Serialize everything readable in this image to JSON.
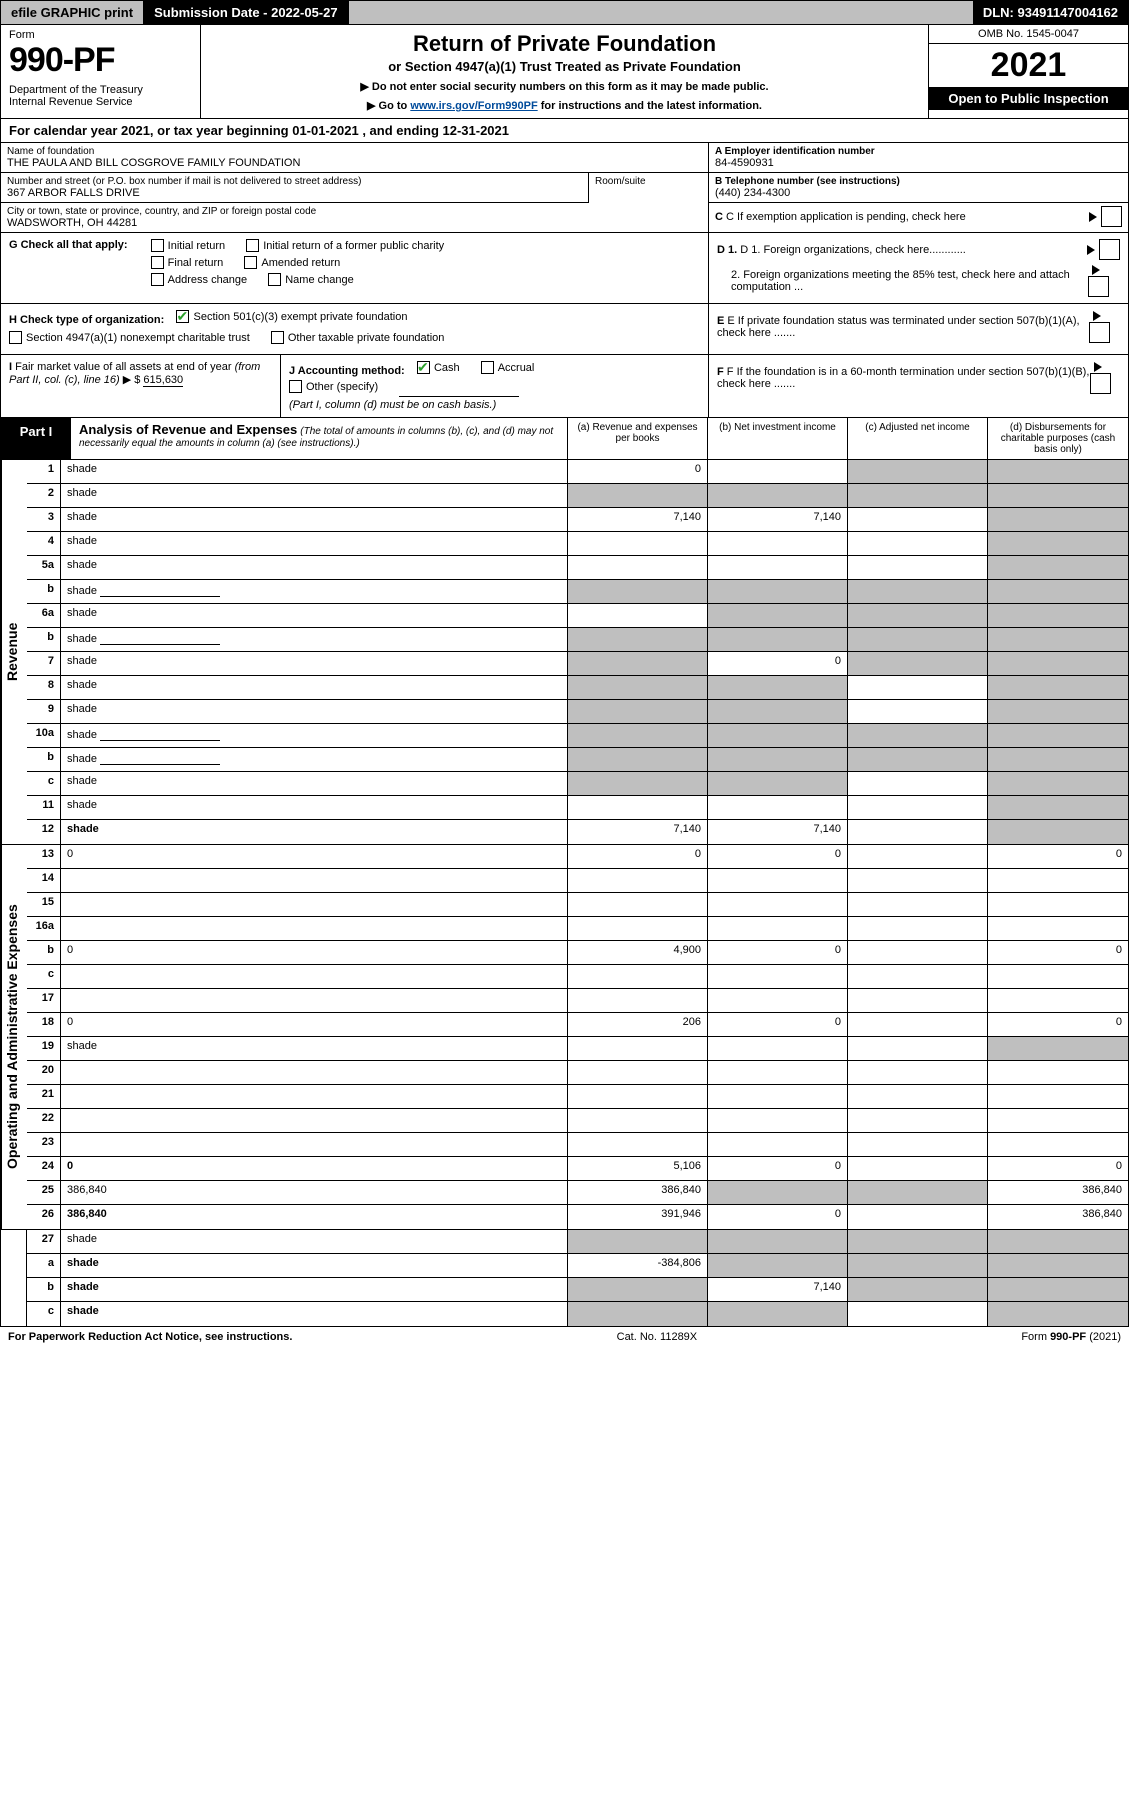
{
  "topbar": {
    "efile": "efile GRAPHIC print",
    "submission": "Submission Date - 2022-05-27",
    "dln": "DLN: 93491147004162"
  },
  "header": {
    "form_label": "Form",
    "form_no": "990-PF",
    "dept": "Department of the Treasury\nInternal Revenue Service",
    "title": "Return of Private Foundation",
    "sub": "or Section 4947(a)(1) Trust Treated as Private Foundation",
    "note1": "▶ Do not enter social security numbers on this form as it may be made public.",
    "note2_pre": "▶ Go to ",
    "note2_link": "www.irs.gov/Form990PF",
    "note2_post": " for instructions and the latest information.",
    "omb": "OMB No. 1545-0047",
    "year": "2021",
    "open": "Open to Public Inspection"
  },
  "calyear": "For calendar year 2021, or tax year beginning 01-01-2021                         , and ending 12-31-2021",
  "info": {
    "name_lbl": "Name of foundation",
    "name": "THE PAULA AND BILL COSGROVE FAMILY FOUNDATION",
    "a_lbl": "A Employer identification number",
    "a_val": "84-4590931",
    "street_lbl": "Number and street (or P.O. box number if mail is not delivered to street address)",
    "street": "367 ARBOR FALLS DRIVE",
    "room_lbl": "Room/suite",
    "b_lbl": "B Telephone number (see instructions)",
    "b_val": "(440) 234-4300",
    "city_lbl": "City or town, state or province, country, and ZIP or foreign postal code",
    "city": "WADSWORTH, OH  44281",
    "c_lbl": "C If exemption application is pending, check here"
  },
  "g": {
    "lbl": "G Check all that apply:",
    "initial": "Initial return",
    "initial_former": "Initial return of a former public charity",
    "final": "Final return",
    "amended": "Amended return",
    "address": "Address change",
    "namechg": "Name change"
  },
  "d": {
    "d1": "D 1. Foreign organizations, check here............",
    "d2": "2. Foreign organizations meeting the 85% test, check here and attach computation ..."
  },
  "h": {
    "lbl": "H Check type of organization:",
    "opt1": "Section 501(c)(3) exempt private foundation",
    "opt2": "Section 4947(a)(1) nonexempt charitable trust",
    "opt3": "Other taxable private foundation"
  },
  "e": {
    "lbl": "E If private foundation status was terminated under section 507(b)(1)(A), check here ......."
  },
  "i": {
    "lbl": "I Fair market value of all assets at end of year (from Part II, col. (c), line 16) ▶ $",
    "val": "615,630"
  },
  "j": {
    "lbl": "J Accounting method:",
    "cash": "Cash",
    "accrual": "Accrual",
    "other": "Other (specify)",
    "note": "(Part I, column (d) must be on cash basis.)"
  },
  "f": {
    "lbl": "F If the foundation is in a 60-month termination under section 507(b)(1)(B), check here ......."
  },
  "part1": {
    "label": "Part I",
    "title": "Analysis of Revenue and Expenses",
    "sub": "(The total of amounts in columns (b), (c), and (d) may not necessarily equal the amounts in column (a) (see instructions).)",
    "col_a": "(a)  Revenue and expenses per books",
    "col_b": "(b)  Net investment income",
    "col_c": "(c)  Adjusted net income",
    "col_d": "(d)  Disbursements for charitable purposes (cash basis only)"
  },
  "sections": {
    "revenue": "Revenue",
    "opex": "Operating and Administrative Expenses"
  },
  "rows": [
    {
      "n": "1",
      "d": "shade",
      "a": "0",
      "b": "",
      "c": "shade"
    },
    {
      "n": "2",
      "d": "shade",
      "a": "shade",
      "b": "shade",
      "c": "shade",
      "bold": false
    },
    {
      "n": "3",
      "d": "shade",
      "a": "7,140",
      "b": "7,140",
      "c": ""
    },
    {
      "n": "4",
      "d": "shade",
      "a": "",
      "b": "",
      "c": ""
    },
    {
      "n": "5a",
      "d": "shade",
      "a": "",
      "b": "",
      "c": ""
    },
    {
      "n": "b",
      "d": "shade",
      "a": "shade",
      "b": "shade",
      "c": "shade",
      "inline": true
    },
    {
      "n": "6a",
      "d": "shade",
      "a": "",
      "b": "shade",
      "c": "shade"
    },
    {
      "n": "b",
      "d": "shade",
      "a": "shade",
      "b": "shade",
      "c": "shade",
      "inline": true
    },
    {
      "n": "7",
      "d": "shade",
      "a": "shade",
      "b": "0",
      "c": "shade"
    },
    {
      "n": "8",
      "d": "shade",
      "a": "shade",
      "b": "shade",
      "c": ""
    },
    {
      "n": "9",
      "d": "shade",
      "a": "shade",
      "b": "shade",
      "c": ""
    },
    {
      "n": "10a",
      "d": "shade",
      "a": "shade",
      "b": "shade",
      "c": "shade",
      "inline": true
    },
    {
      "n": "b",
      "d": "shade",
      "a": "shade",
      "b": "shade",
      "c": "shade",
      "inline": true
    },
    {
      "n": "c",
      "d": "shade",
      "a": "shade",
      "b": "shade",
      "c": ""
    },
    {
      "n": "11",
      "d": "shade",
      "a": "",
      "b": "",
      "c": ""
    },
    {
      "n": "12",
      "d": "shade",
      "a": "7,140",
      "b": "7,140",
      "c": "",
      "bold": true
    }
  ],
  "rows2": [
    {
      "n": "13",
      "d": "0",
      "a": "0",
      "b": "0",
      "c": ""
    },
    {
      "n": "14",
      "d": "",
      "a": "",
      "b": "",
      "c": ""
    },
    {
      "n": "15",
      "d": "",
      "a": "",
      "b": "",
      "c": ""
    },
    {
      "n": "16a",
      "d": "",
      "a": "",
      "b": "",
      "c": ""
    },
    {
      "n": "b",
      "d": "0",
      "a": "4,900",
      "b": "0",
      "c": ""
    },
    {
      "n": "c",
      "d": "",
      "a": "",
      "b": "",
      "c": ""
    },
    {
      "n": "17",
      "d": "",
      "a": "",
      "b": "",
      "c": ""
    },
    {
      "n": "18",
      "d": "0",
      "a": "206",
      "b": "0",
      "c": ""
    },
    {
      "n": "19",
      "d": "shade",
      "a": "",
      "b": "",
      "c": ""
    },
    {
      "n": "20",
      "d": "",
      "a": "",
      "b": "",
      "c": ""
    },
    {
      "n": "21",
      "d": "",
      "a": "",
      "b": "",
      "c": ""
    },
    {
      "n": "22",
      "d": "",
      "a": "",
      "b": "",
      "c": ""
    },
    {
      "n": "23",
      "d": "",
      "a": "",
      "b": "",
      "c": ""
    },
    {
      "n": "24",
      "d": "0",
      "a": "5,106",
      "b": "0",
      "c": "",
      "bold": true
    },
    {
      "n": "25",
      "d": "386,840",
      "a": "386,840",
      "b": "shade",
      "c": "shade"
    },
    {
      "n": "26",
      "d": "386,840",
      "a": "391,946",
      "b": "0",
      "c": "",
      "bold": true
    }
  ],
  "rows3": [
    {
      "n": "27",
      "d": "shade",
      "a": "shade",
      "b": "shade",
      "c": "shade"
    },
    {
      "n": "a",
      "d": "shade",
      "a": "-384,806",
      "b": "shade",
      "c": "shade",
      "bold": true
    },
    {
      "n": "b",
      "d": "shade",
      "a": "shade",
      "b": "7,140",
      "c": "shade",
      "bold": true
    },
    {
      "n": "c",
      "d": "shade",
      "a": "shade",
      "b": "shade",
      "c": "",
      "bold": true
    }
  ],
  "footer": {
    "left": "For Paperwork Reduction Act Notice, see instructions.",
    "mid": "Cat. No. 11289X",
    "right": "Form 990-PF (2021)"
  }
}
